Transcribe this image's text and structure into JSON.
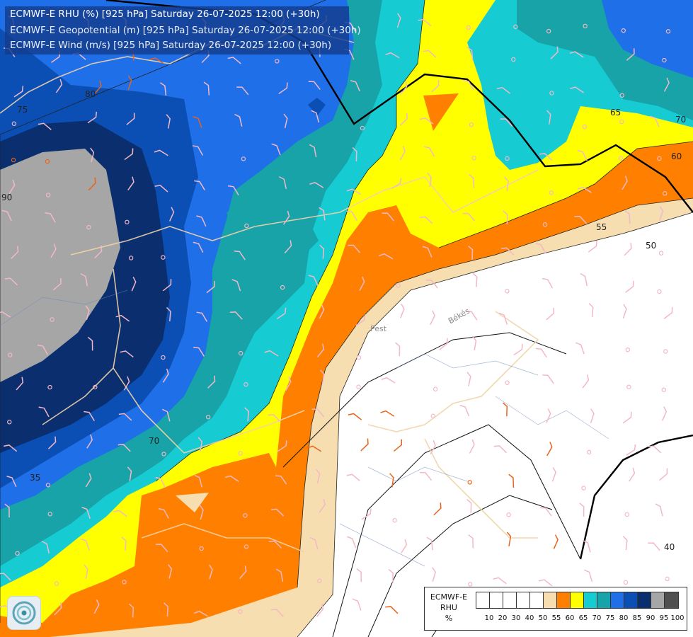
{
  "title": {
    "line1": "ECMWF-E RHU (%) [925 hPa] Saturday 26-07-2025 12:00 (+30h)",
    "line2": "ECMWF-E Geopotential (m) [925 hPa] Saturday 26-07-2025 12:00 (+30h)",
    "line3": "ECMWF-E Wind (m/s) [925 hPa] Saturday 26-07-2025 12:00 (+30h)"
  },
  "legend": {
    "title_lines": [
      "ECMWF-E",
      "RHU",
      "%"
    ],
    "swatch_colors": [
      "#ffffff",
      "#ffffff",
      "#ffffff",
      "#ffffff",
      "#ffffff",
      "#f6deb0",
      "#ff8000",
      "#ffff00",
      "#17cbd3",
      "#17a3a8",
      "#1f6fe8",
      "#0b4fb5",
      "#0a2e6e",
      "#a6a6a6",
      "#505050"
    ],
    "ticks": [
      "10",
      "20",
      "30",
      "40",
      "50",
      "55",
      "60",
      "65",
      "70",
      "75",
      "80",
      "85",
      "90",
      "95",
      "100"
    ]
  },
  "contour_labels": {
    "rhu": [
      "75",
      "80",
      "90",
      "65",
      "70",
      "60",
      "55",
      "50",
      "70",
      "35"
    ],
    "geopotential": [
      "40"
    ]
  },
  "places": [
    "Pest",
    "Békés"
  ],
  "logo": "ecmwf-logo-icon"
}
